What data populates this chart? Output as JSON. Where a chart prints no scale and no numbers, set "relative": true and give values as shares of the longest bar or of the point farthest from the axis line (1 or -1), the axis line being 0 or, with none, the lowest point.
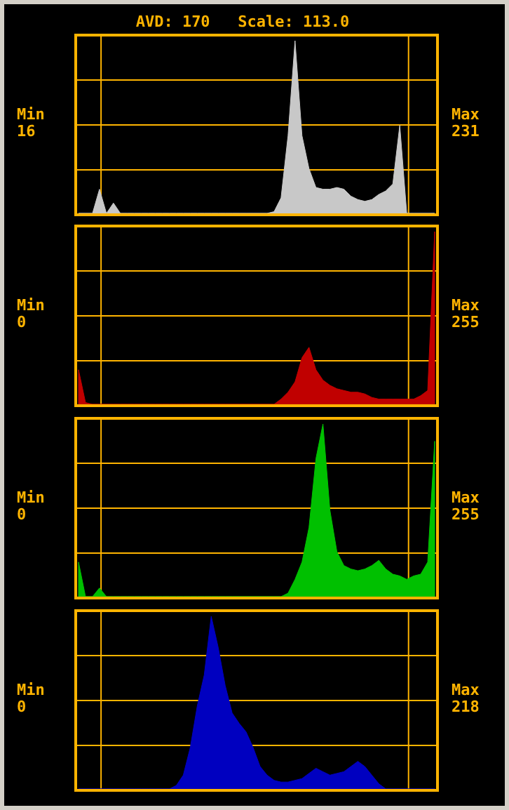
{
  "chart_data": [
    {
      "type": "area",
      "title": "AVD: 170   Scale: 113.0",
      "relative": true,
      "grid": true,
      "annotations": [
        "Min 16",
        "Max 231"
      ],
      "categories": [
        null,
        null,
        null,
        null,
        null,
        null,
        null,
        null,
        null,
        null,
        null,
        null,
        null,
        null,
        null,
        null,
        null,
        null,
        null,
        null,
        null,
        null,
        null,
        null,
        null,
        null,
        null,
        null,
        null,
        null,
        null,
        null,
        null,
        null,
        null,
        null,
        null,
        null,
        null,
        null,
        null,
        null,
        null,
        null,
        null,
        null,
        null,
        null,
        null,
        null,
        null,
        null
      ],
      "series": [
        {
          "color": "#c8c8c8",
          "values": [
            0,
            0,
            0,
            0.14,
            0,
            0.06,
            0,
            0,
            0,
            0,
            0,
            0,
            0,
            0,
            0,
            0,
            0,
            0,
            0,
            0,
            0,
            0,
            0,
            0,
            0,
            0,
            0,
            0,
            0.01,
            0.09,
            0.45,
            1,
            0.45,
            0.26,
            0.15,
            0.14,
            0.14,
            0.15,
            0.14,
            0.1,
            0.08,
            0.07,
            0.08,
            0.11,
            0.13,
            0.17,
            0.51,
            0,
            0,
            0,
            0,
            0
          ]
        }
      ]
    },
    {
      "type": "area",
      "relative": true,
      "grid": true,
      "annotations": [
        "Min 0",
        "Max 255"
      ],
      "categories": [
        null,
        null,
        null,
        null,
        null,
        null,
        null,
        null,
        null,
        null,
        null,
        null,
        null,
        null,
        null,
        null,
        null,
        null,
        null,
        null,
        null,
        null,
        null,
        null,
        null,
        null,
        null,
        null,
        null,
        null,
        null,
        null,
        null,
        null,
        null,
        null,
        null,
        null,
        null,
        null,
        null,
        null,
        null,
        null,
        null,
        null,
        null,
        null,
        null,
        null,
        null,
        null
      ],
      "series": [
        {
          "color": "#c00000",
          "values": [
            0.2,
            0.01,
            0,
            0,
            0,
            0,
            0,
            0,
            0,
            0,
            0,
            0,
            0,
            0,
            0,
            0,
            0,
            0,
            0,
            0,
            0,
            0,
            0,
            0,
            0,
            0,
            0,
            0,
            0,
            0.03,
            0.07,
            0.13,
            0.27,
            0.33,
            0.2,
            0.14,
            0.11,
            0.09,
            0.08,
            0.07,
            0.07,
            0.06,
            0.04,
            0.03,
            0.03,
            0.03,
            0.03,
            0.03,
            0.03,
            0.05,
            0.08,
            1
          ]
        }
      ]
    },
    {
      "type": "area",
      "relative": true,
      "grid": true,
      "annotations": [
        "Min 0",
        "Max 255"
      ],
      "categories": [
        null,
        null,
        null,
        null,
        null,
        null,
        null,
        null,
        null,
        null,
        null,
        null,
        null,
        null,
        null,
        null,
        null,
        null,
        null,
        null,
        null,
        null,
        null,
        null,
        null,
        null,
        null,
        null,
        null,
        null,
        null,
        null,
        null,
        null,
        null,
        null,
        null,
        null,
        null,
        null,
        null,
        null,
        null,
        null,
        null,
        null,
        null,
        null,
        null,
        null,
        null,
        null
      ],
      "series": [
        {
          "color": "#00c000",
          "values": [
            0.2,
            0,
            0,
            0.05,
            0,
            0,
            0,
            0,
            0,
            0,
            0,
            0,
            0,
            0,
            0,
            0,
            0,
            0,
            0,
            0,
            0,
            0,
            0,
            0,
            0,
            0,
            0,
            0,
            0,
            0,
            0.02,
            0.1,
            0.2,
            0.4,
            0.8,
            1,
            0.5,
            0.26,
            0.18,
            0.16,
            0.15,
            0.16,
            0.18,
            0.21,
            0.16,
            0.13,
            0.12,
            0.1,
            0.12,
            0.13,
            0.2,
            0.9
          ]
        }
      ]
    },
    {
      "type": "area",
      "relative": true,
      "grid": true,
      "annotations": [
        "Min 0",
        "Max 218"
      ],
      "categories": [
        null,
        null,
        null,
        null,
        null,
        null,
        null,
        null,
        null,
        null,
        null,
        null,
        null,
        null,
        null,
        null,
        null,
        null,
        null,
        null,
        null,
        null,
        null,
        null,
        null,
        null,
        null,
        null,
        null,
        null,
        null,
        null,
        null,
        null,
        null,
        null,
        null,
        null,
        null,
        null,
        null,
        null,
        null,
        null,
        null,
        null,
        null,
        null,
        null,
        null,
        null,
        null
      ],
      "series": [
        {
          "color": "#0000c0",
          "values": [
            0,
            0,
            0,
            0,
            0,
            0,
            0,
            0,
            0,
            0,
            0,
            0,
            0,
            0,
            0.02,
            0.08,
            0.24,
            0.48,
            0.66,
            1,
            0.82,
            0.6,
            0.44,
            0.38,
            0.33,
            0.24,
            0.13,
            0.08,
            0.05,
            0.04,
            0.04,
            0.05,
            0.06,
            0.09,
            0.12,
            0.1,
            0.08,
            0.09,
            0.1,
            0.13,
            0.16,
            0.13,
            0.08,
            0.03,
            0,
            0,
            0,
            0,
            0,
            0,
            0,
            0
          ]
        }
      ]
    }
  ]
}
